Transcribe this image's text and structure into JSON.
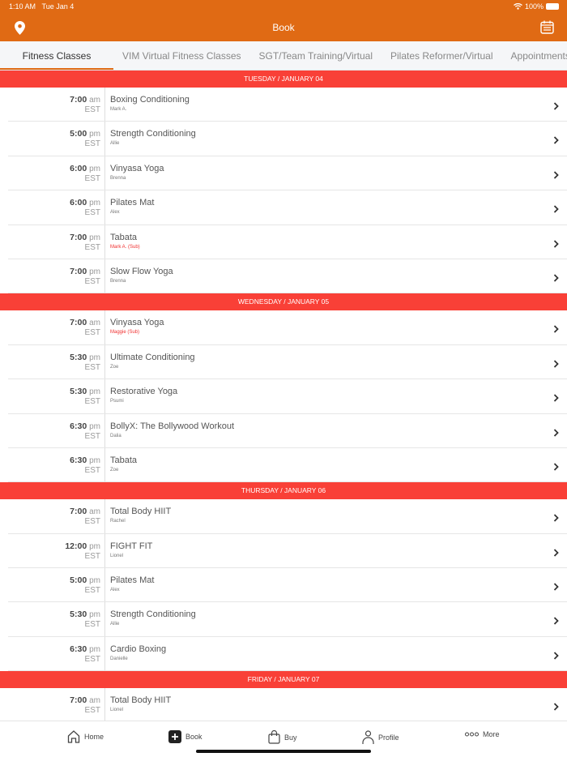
{
  "status_bar": {
    "time": "1:10 AM",
    "date": "Tue Jan 4",
    "battery": "100%"
  },
  "header": {
    "title": "Book",
    "left_icon": "location-pin-icon",
    "right_icon": "calendar-icon"
  },
  "colors": {
    "header": "#e06a14",
    "section": "#f94037",
    "sub_instructor": "#f03030"
  },
  "tabs": [
    {
      "label": "Fitness Classes",
      "active": true
    },
    {
      "label": "VIM Virtual Fitness Classes"
    },
    {
      "label": "SGT/Team Training/Virtual"
    },
    {
      "label": "Pilates Reformer/Virtual"
    },
    {
      "label": "Appointments"
    }
  ],
  "sections": [
    {
      "label": "TUESDAY / JANUARY 04",
      "classes": [
        {
          "time": "7:00",
          "ampm": "am",
          "tz": "EST",
          "name": "Boxing Conditioning",
          "instructor": "Mark A.",
          "sub": false
        },
        {
          "time": "5:00",
          "ampm": "pm",
          "tz": "EST",
          "name": "Strength Conditioning",
          "instructor": "Allie",
          "sub": false
        },
        {
          "time": "6:00",
          "ampm": "pm",
          "tz": "EST",
          "name": "Vinyasa Yoga",
          "instructor": "Brenna",
          "sub": false
        },
        {
          "time": "6:00",
          "ampm": "pm",
          "tz": "EST",
          "name": "Pilates Mat",
          "instructor": "Alex",
          "sub": false
        },
        {
          "time": "7:00",
          "ampm": "pm",
          "tz": "EST",
          "name": "Tabata",
          "instructor": "Mark A. (Sub)",
          "sub": true
        },
        {
          "time": "7:00",
          "ampm": "pm",
          "tz": "EST",
          "name": "Slow Flow Yoga",
          "instructor": "Brenna",
          "sub": false
        }
      ]
    },
    {
      "label": "WEDNESDAY / JANUARY 05",
      "classes": [
        {
          "time": "7:00",
          "ampm": "am",
          "tz": "EST",
          "name": "Vinyasa Yoga",
          "instructor": "Maggie (Sub)",
          "sub": true
        },
        {
          "time": "5:30",
          "ampm": "pm",
          "tz": "EST",
          "name": "Ultimate Conditioning",
          "instructor": "Zoe",
          "sub": false
        },
        {
          "time": "5:30",
          "ampm": "pm",
          "tz": "EST",
          "name": "Restorative Yoga",
          "instructor": "Psumi",
          "sub": false
        },
        {
          "time": "6:30",
          "ampm": "pm",
          "tz": "EST",
          "name": "BollyX: The Bollywood Workout",
          "instructor": "Dalia",
          "sub": false
        },
        {
          "time": "6:30",
          "ampm": "pm",
          "tz": "EST",
          "name": "Tabata",
          "instructor": "Zoe",
          "sub": false
        }
      ]
    },
    {
      "label": "THURSDAY / JANUARY 06",
      "classes": [
        {
          "time": "7:00",
          "ampm": "am",
          "tz": "EST",
          "name": "Total Body HIIT",
          "instructor": "Rachel",
          "sub": false
        },
        {
          "time": "12:00",
          "ampm": "pm",
          "tz": "EST",
          "name": "FIGHT FIT",
          "instructor": "Lionel",
          "sub": false
        },
        {
          "time": "5:00",
          "ampm": "pm",
          "tz": "EST",
          "name": "Pilates Mat",
          "instructor": "Alex",
          "sub": false
        },
        {
          "time": "5:30",
          "ampm": "pm",
          "tz": "EST",
          "name": "Strength Conditioning",
          "instructor": "Allie",
          "sub": false
        },
        {
          "time": "6:30",
          "ampm": "pm",
          "tz": "EST",
          "name": "Cardio Boxing",
          "instructor": "Danielle",
          "sub": false
        }
      ]
    },
    {
      "label": "FRIDAY / JANUARY 07",
      "classes": [
        {
          "time": "7:00",
          "ampm": "am",
          "tz": "EST",
          "name": "Total Body HIIT",
          "instructor": "Lionel",
          "sub": false
        }
      ]
    }
  ],
  "bottom_nav": [
    {
      "label": "Home",
      "icon": "home-icon"
    },
    {
      "label": "Book",
      "icon": "plus-square-icon",
      "active": true
    },
    {
      "label": "Buy",
      "icon": "shopping-bag-icon"
    },
    {
      "label": "Profile",
      "icon": "person-icon"
    },
    {
      "label": "More",
      "icon": "more-dots-icon"
    }
  ]
}
